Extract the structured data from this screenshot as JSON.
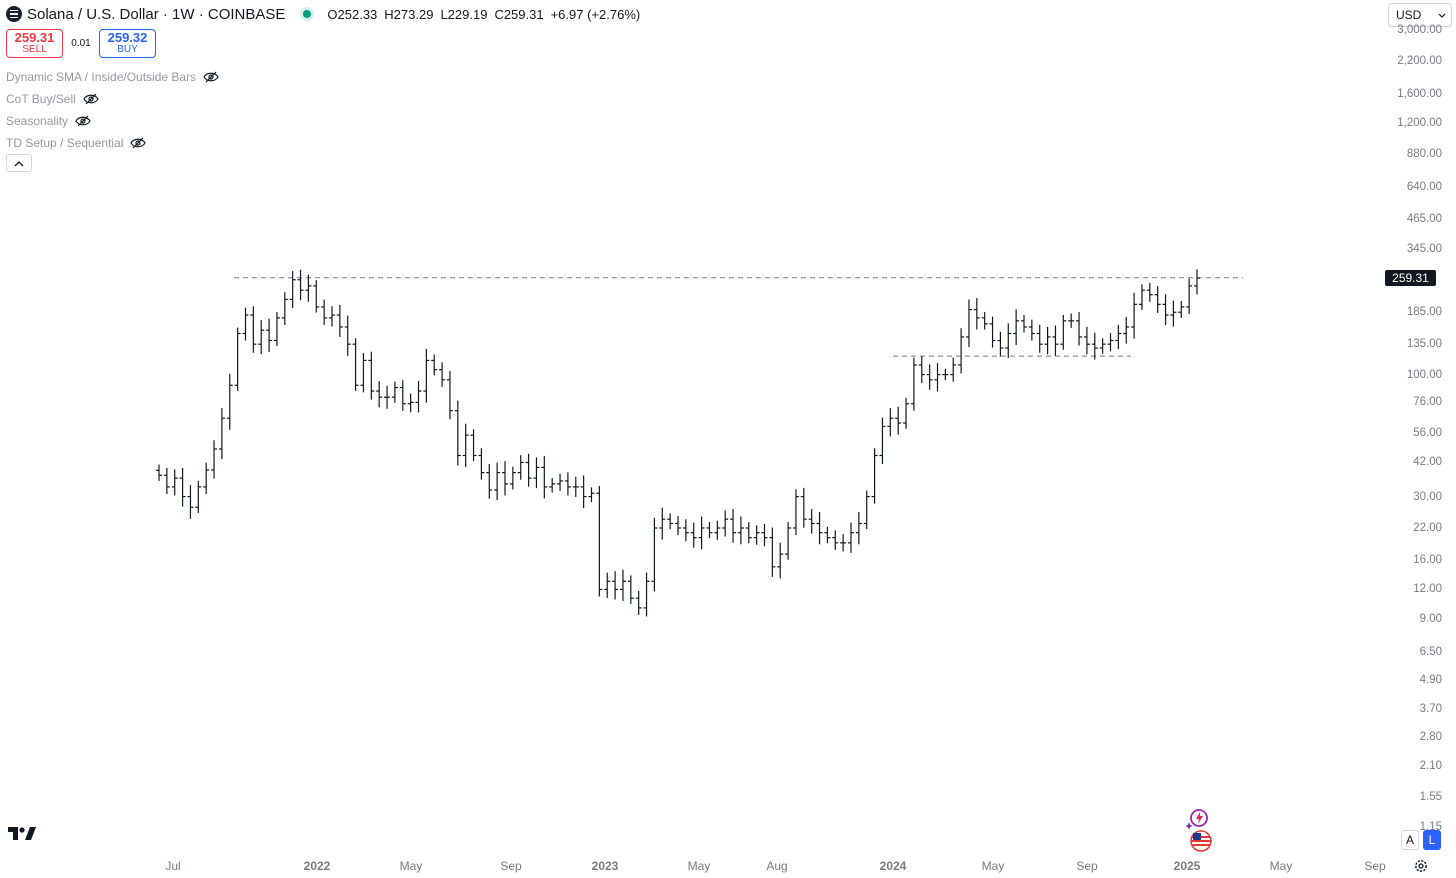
{
  "header": {
    "title": "Solana / U.S. Dollar · 1W · COINBASE",
    "ohlc": {
      "open": "O252.33",
      "high": "H273.29",
      "low": "L229.19",
      "close": "C259.31",
      "change": "+6.97 (+2.76%)"
    }
  },
  "trade": {
    "sell_price": "259.31",
    "sell_label": "SELL",
    "spread": "0.01",
    "buy_price": "259.32",
    "buy_label": "BUY"
  },
  "indicators": [
    {
      "label": "Dynamic SMA / Inside/Outside Bars",
      "icon": "eye-off-icon"
    },
    {
      "label": "CoT Buy/Sell",
      "icon": "eye-off-icon"
    },
    {
      "label": "Seasonality",
      "icon": "eye-off-icon"
    },
    {
      "label": "TD Setup / Sequential",
      "icon": "eye-off-icon"
    }
  ],
  "currency": "USD",
  "last_price_label": "259.31",
  "price_axis": [
    "3,000.00",
    "2,200.00",
    "1,600.00",
    "1,200.00",
    "880.00",
    "640.00",
    "465.00",
    "345.00",
    "185.00",
    "135.00",
    "100.00",
    "76.00",
    "56.00",
    "42.00",
    "30.00",
    "22.00",
    "16.00",
    "12.00",
    "9.00",
    "6.50",
    "4.90",
    "3.70",
    "2.80",
    "2.10",
    "1.55",
    "1.15"
  ],
  "time_axis": [
    {
      "label": "Jul",
      "year": false
    },
    {
      "label": "2022",
      "year": true
    },
    {
      "label": "May",
      "year": false
    },
    {
      "label": "Sep",
      "year": false
    },
    {
      "label": "2023",
      "year": true
    },
    {
      "label": "May",
      "year": false
    },
    {
      "label": "Aug",
      "year": false
    },
    {
      "label": "2024",
      "year": true
    },
    {
      "label": "May",
      "year": false
    },
    {
      "label": "Sep",
      "year": false
    },
    {
      "label": "2025",
      "year": true
    },
    {
      "label": "May",
      "year": false
    },
    {
      "label": "Sep",
      "year": false
    }
  ],
  "bottom_toolbar": {
    "mode_a": "A",
    "mode_l": "L"
  },
  "colors": {
    "bars": "#131722",
    "sell": "#f23645",
    "buy": "#2962ff",
    "live": "#089981",
    "lines": "#787b86"
  },
  "chart_data": {
    "type": "ohlc-bar",
    "timeframe": "1W",
    "scale": "log",
    "ylim": [
      1.15,
      3000
    ],
    "horizontal_levels": [
      260,
      120
    ],
    "series": [
      {
        "name": "Solana / U.S. Dollar",
        "close": [
          37,
          33,
          36,
          30,
          27,
          33,
          39,
          48,
          65,
          90,
          150,
          180,
          135,
          155,
          140,
          175,
          210,
          255,
          230,
          240,
          195,
          175,
          180,
          160,
          135,
          90,
          115,
          85,
          80,
          80,
          88,
          75,
          76,
          85,
          115,
          105,
          95,
          70,
          45,
          55,
          45,
          38,
          32,
          38,
          34,
          38,
          42,
          36,
          40,
          33,
          34,
          35,
          33,
          33,
          30,
          31,
          12,
          13,
          12,
          13,
          11,
          10,
          13,
          22,
          24,
          23,
          22,
          21,
          20,
          22,
          21,
          22,
          24,
          21,
          22,
          20,
          21,
          20,
          15,
          17,
          22,
          30,
          24,
          23,
          21,
          20,
          19,
          19,
          21,
          23,
          30,
          45,
          60,
          65,
          62,
          75,
          110,
          100,
          95,
          100,
          100,
          110,
          145,
          190,
          175,
          165,
          140,
          130,
          150,
          170,
          160,
          150,
          135,
          145,
          135,
          170,
          170,
          145,
          135,
          130,
          135,
          140,
          150,
          160,
          200,
          230,
          220,
          200,
          180,
          185,
          195,
          240,
          259.31
        ]
      }
    ]
  }
}
